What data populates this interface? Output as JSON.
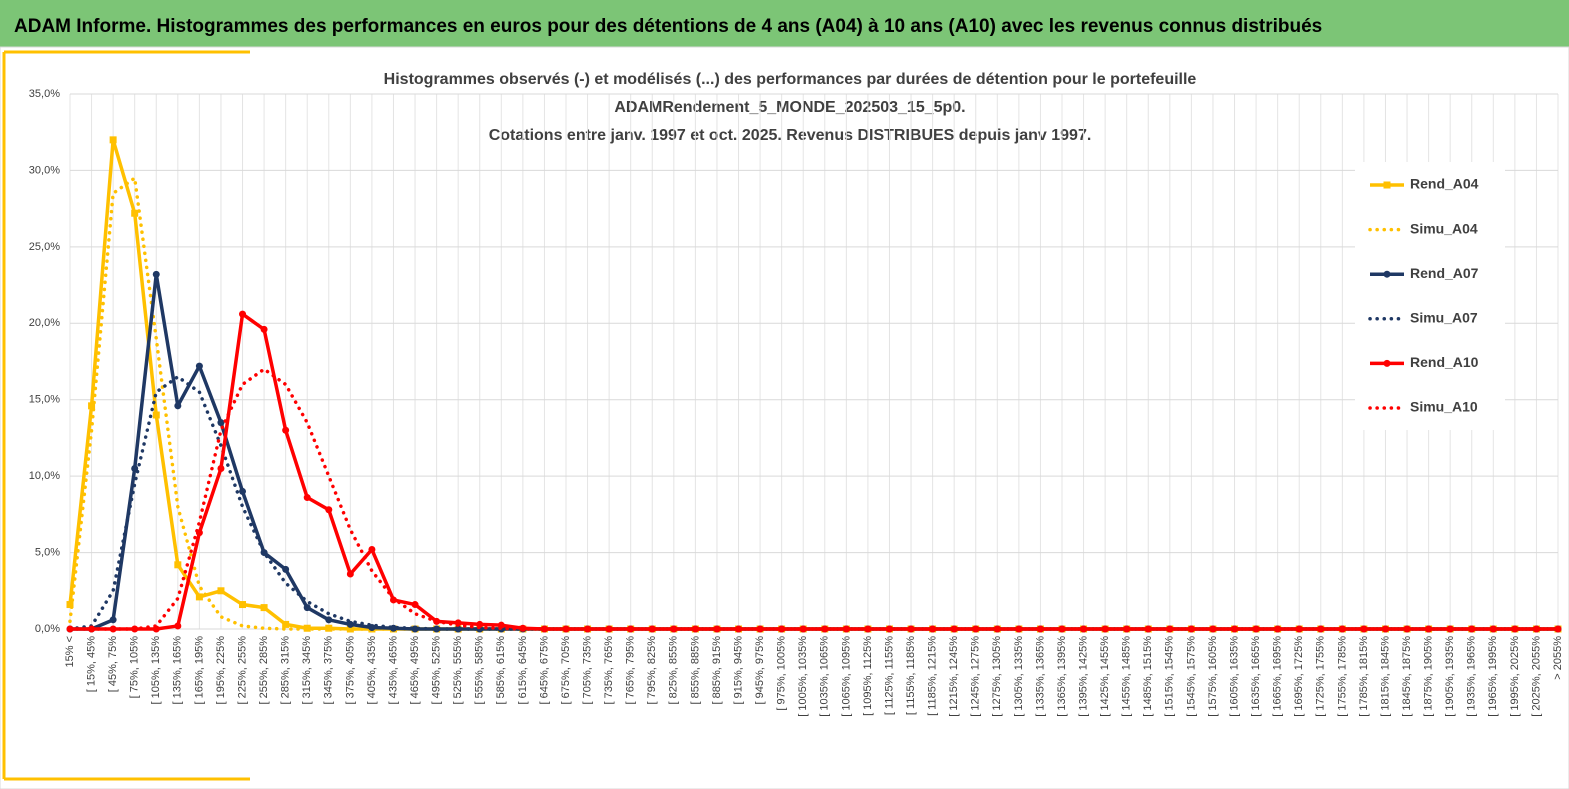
{
  "header": {
    "title": "ADAM Informe. Histogrammes des performances en euros pour des détentions de 4 ans (A04) à 10 ans (A10) avec les revenus connus distribués"
  },
  "chart_data": {
    "type": "line",
    "title": [
      "Histogrammes observés (-) et modélisés (...) des performances par durées de détention pour le portefeuille",
      "ADAMRendement_5_MONDE_202503_15_5p0.",
      "Cotations entre janv. 1997 et oct. 2025. Revenus DISTRIBUES depuis janv 1997."
    ],
    "categories": [
      "15% <",
      "[ 15%, 45%",
      "[ 45%, 75%",
      "[ 75%, 105%",
      "[ 105%, 135%",
      "[ 135%, 165%",
      "[ 165%, 195%",
      "[ 195%, 225%",
      "[ 225%, 255%",
      "[ 255%, 285%",
      "[ 285%, 315%",
      "[ 315%, 345%",
      "[ 345%, 375%",
      "[ 375%, 405%",
      "[ 405%, 435%",
      "[ 435%, 465%",
      "[ 465%, 495%",
      "[ 495%, 525%",
      "[ 525%, 555%",
      "[ 555%, 585%",
      "[ 585%, 615%",
      "[ 615%, 645%",
      "[ 645%, 675%",
      "[ 675%, 705%",
      "[ 705%, 735%",
      "[ 735%, 765%",
      "[ 765%, 795%",
      "[ 795%, 825%",
      "[ 825%, 855%",
      "[ 855%, 885%",
      "[ 885%, 915%",
      "[ 915%, 945%",
      "[ 945%, 975%",
      "[ 975%, 1005%",
      "[ 1005%, 1035%",
      "[ 1035%, 1065%",
      "[ 1065%, 1095%",
      "[ 1095%, 1125%",
      "[ 1125%, 1155%",
      "[ 1155%, 1185%",
      "[ 1185%, 1215%",
      "[ 1215%, 1245%",
      "[ 1245%, 1275%",
      "[ 1275%, 1305%",
      "[ 1305%, 1335%",
      "[ 1335%, 1365%",
      "[ 1365%, 1395%",
      "[ 1395%, 1425%",
      "[ 1425%, 1455%",
      "[ 1455%, 1485%",
      "[ 1485%, 1515%",
      "[ 1515%, 1545%",
      "[ 1545%, 1575%",
      "[ 1575%, 1605%",
      "[ 1605%, 1635%",
      "[ 1635%, 1665%",
      "[ 1665%, 1695%",
      "[ 1695%, 1725%",
      "[ 1725%, 1755%",
      "[ 1755%, 1785%",
      "[ 1785%, 1815%",
      "[ 1815%, 1845%",
      "[ 1845%, 1875%",
      "[ 1875%, 1905%",
      "[ 1905%, 1935%",
      "[ 1935%, 1965%",
      "[ 1965%, 1995%",
      "[ 1995%, 2025%",
      "[ 2025%, 2055%",
      "> 2055%"
    ],
    "series": [
      {
        "name": "Rend_A04",
        "color": "#ffc000",
        "dash": "solid",
        "marker": "square",
        "values": [
          1.6,
          14.6,
          32.0,
          27.2,
          14.0,
          4.2,
          2.1,
          2.5,
          1.6,
          1.4,
          0.3,
          0.05,
          0.05,
          0,
          0,
          0,
          0,
          0,
          0,
          0,
          0,
          0,
          0,
          0,
          0,
          0,
          0,
          0,
          0,
          0,
          0,
          0,
          0,
          0,
          0,
          0,
          0,
          0,
          0,
          0,
          0,
          0,
          0,
          0,
          0,
          0,
          0,
          0,
          0,
          0,
          0,
          0,
          0,
          0,
          0,
          0,
          0,
          0,
          0,
          0,
          0,
          0,
          0,
          0,
          0,
          0,
          0,
          0,
          0,
          0
        ]
      },
      {
        "name": "Simu_A04",
        "color": "#ffc000",
        "dash": "dot",
        "marker": null,
        "values": [
          0.5,
          13,
          28.5,
          29.5,
          19,
          8,
          2.8,
          0.8,
          0.2,
          0.05,
          0,
          0,
          0,
          0,
          0,
          0,
          0,
          0,
          0,
          0,
          0,
          0,
          0,
          0,
          0,
          0,
          0,
          0,
          0,
          0,
          0,
          0,
          0,
          0,
          0,
          0,
          0,
          0,
          0,
          0,
          0,
          0,
          0,
          0,
          0,
          0,
          0,
          0,
          0,
          0,
          0,
          0,
          0,
          0,
          0,
          0,
          0,
          0,
          0,
          0,
          0,
          0,
          0,
          0,
          0,
          0,
          0,
          0,
          0,
          0
        ]
      },
      {
        "name": "Rend_A07",
        "color": "#1f3864",
        "dash": "solid",
        "marker": "circle",
        "values": [
          0,
          0,
          0.6,
          10.5,
          23.2,
          14.6,
          17.2,
          13.5,
          9.0,
          5.0,
          3.9,
          1.4,
          0.6,
          0.3,
          0.1,
          0.05,
          0,
          0,
          0,
          0,
          0,
          0,
          0,
          0,
          0,
          0,
          0,
          0,
          0,
          0,
          0,
          0,
          0,
          0,
          0,
          0,
          0,
          0,
          0,
          0,
          0,
          0,
          0,
          0,
          0,
          0,
          0,
          0,
          0,
          0,
          0,
          0,
          0,
          0,
          0,
          0,
          0,
          0,
          0,
          0,
          0,
          0,
          0,
          0,
          0,
          0,
          0,
          0,
          0,
          0
        ]
      },
      {
        "name": "Simu_A07",
        "color": "#1f3864",
        "dash": "dot",
        "marker": null,
        "values": [
          0,
          0.2,
          2.5,
          9.5,
          15.5,
          16.5,
          15.5,
          12,
          8,
          5,
          3,
          1.8,
          1,
          0.5,
          0.25,
          0.1,
          0.05,
          0,
          0,
          0,
          0,
          0,
          0,
          0,
          0,
          0,
          0,
          0,
          0,
          0,
          0,
          0,
          0,
          0,
          0,
          0,
          0,
          0,
          0,
          0,
          0,
          0,
          0,
          0,
          0,
          0,
          0,
          0,
          0,
          0,
          0,
          0,
          0,
          0,
          0,
          0,
          0,
          0,
          0,
          0,
          0,
          0,
          0,
          0,
          0,
          0,
          0,
          0,
          0,
          0
        ]
      },
      {
        "name": "Rend_A10",
        "color": "#ff0000",
        "dash": "solid",
        "marker": "circle",
        "values": [
          0,
          0,
          0,
          0,
          0,
          0.2,
          6.3,
          10.5,
          20.6,
          19.6,
          13,
          8.6,
          7.8,
          3.6,
          5.2,
          1.9,
          1.6,
          0.5,
          0.4,
          0.3,
          0.25,
          0.05,
          0,
          0,
          0,
          0,
          0,
          0,
          0,
          0,
          0,
          0,
          0,
          0,
          0,
          0,
          0,
          0,
          0,
          0,
          0,
          0,
          0,
          0,
          0,
          0,
          0,
          0,
          0,
          0,
          0,
          0,
          0,
          0,
          0,
          0,
          0,
          0,
          0,
          0,
          0,
          0,
          0,
          0,
          0,
          0,
          0,
          0,
          0,
          0
        ]
      },
      {
        "name": "Simu_A10",
        "color": "#ff0000",
        "dash": "dot",
        "marker": null,
        "values": [
          0,
          0,
          0,
          0,
          0.2,
          2,
          7,
          13,
          16,
          17,
          16,
          13.5,
          10,
          6.5,
          3.8,
          2,
          1,
          0.5,
          0.25,
          0.1,
          0.05,
          0,
          0,
          0,
          0,
          0,
          0,
          0,
          0,
          0,
          0,
          0,
          0,
          0,
          0,
          0,
          0,
          0,
          0,
          0,
          0,
          0,
          0,
          0,
          0,
          0,
          0,
          0,
          0,
          0,
          0,
          0,
          0,
          0,
          0,
          0,
          0,
          0,
          0,
          0,
          0,
          0,
          0,
          0,
          0,
          0,
          0,
          0,
          0,
          0
        ]
      }
    ],
    "ylim": [
      0,
      35
    ],
    "yticks": [
      {
        "value": 0,
        "label": "0,0%"
      },
      {
        "value": 5,
        "label": "5,0%"
      },
      {
        "value": 10,
        "label": "10,0%"
      },
      {
        "value": 15,
        "label": "15,0%"
      },
      {
        "value": 20,
        "label": "20,0%"
      },
      {
        "value": 25,
        "label": "25,0%"
      },
      {
        "value": 30,
        "label": "30,0%"
      },
      {
        "value": 35,
        "label": "35,0%"
      }
    ],
    "grid": true,
    "legend": "right"
  }
}
